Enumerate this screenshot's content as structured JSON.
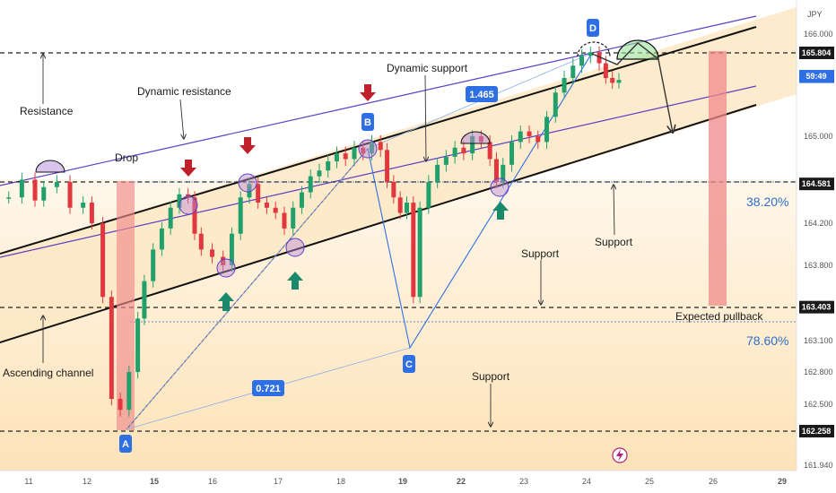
{
  "currency": "JPY",
  "countdown": "59:49",
  "colors": {
    "bg": "#ffffff",
    "channel_fill": "#fde8c4",
    "channel_black": "#111111",
    "channel_purple": "#5b3fc4",
    "bull": "#22a06b",
    "bear": "#e0383e",
    "point_tag": "#2f6fe4",
    "down_arrow": "#c0202c",
    "up_arrow": "#1b8a6b",
    "pullback_zone": "#f08a8a",
    "fib_text": "#2d6ecb"
  },
  "annotations": {
    "resistance": "Resistance",
    "dynamic_resistance": "Dynamic resistance",
    "dynamic_support": "Dynamic support",
    "drop": "Drop",
    "support_1": "Support",
    "support_2": "Support",
    "support_3": "Support",
    "ascending_channel": "Ascending channel",
    "expected_pullback": "Expected pullback",
    "fib_382": "38.20%",
    "fib_786": "78.60%",
    "ratio_ab": "0.721",
    "ratio_cd": "1.465"
  },
  "points": {
    "A": "A",
    "B": "B",
    "C": "C",
    "D": "D"
  },
  "chart_data": {
    "type": "candlestick",
    "instrument_currency": "JPY",
    "x_ticks": [
      "11",
      "12",
      "15",
      "16",
      "17",
      "18",
      "19",
      "22",
      "23",
      "24",
      "25",
      "26",
      "29"
    ],
    "y_ticks": [
      166.0,
      165.6,
      165.0,
      164.6,
      164.2,
      163.8,
      163.4,
      163.1,
      162.8,
      162.5,
      161.94
    ],
    "y_tick_labels": [
      "166.000",
      "165.600",
      "165.000",
      "164.600",
      "164.200",
      "163.800",
      "163.400",
      "163.100",
      "162.800",
      "162.500",
      "161.940"
    ],
    "ylim": [
      161.85,
      166.35
    ],
    "price_levels": [
      {
        "label": "165.804",
        "value": 165.804
      },
      {
        "label": "164.581",
        "value": 164.581
      },
      {
        "label": "163.403",
        "value": 163.403
      },
      {
        "label": "162.258",
        "value": 162.258
      }
    ],
    "current_price": {
      "label": "165.576",
      "value": 165.576
    },
    "harmonic_points": [
      {
        "name": "A",
        "x": 12.8,
        "y": 162.26
      },
      {
        "name": "B",
        "x": 18.7,
        "y": 164.95
      },
      {
        "name": "C",
        "x": 19.2,
        "y": 163.1
      },
      {
        "name": "D",
        "x": 24.0,
        "y": 165.81
      }
    ],
    "fib_ratios": [
      0.721,
      1.465
    ],
    "fib_levels": [
      "38.20%",
      "78.60%"
    ],
    "close_series": [
      {
        "x": 10.2,
        "y": 164.45
      },
      {
        "x": 10.5,
        "y": 164.62
      },
      {
        "x": 10.8,
        "y": 164.42
      },
      {
        "x": 11.0,
        "y": 164.55
      },
      {
        "x": 11.3,
        "y": 164.6
      },
      {
        "x": 11.6,
        "y": 164.35
      },
      {
        "x": 11.9,
        "y": 164.4
      },
      {
        "x": 12.1,
        "y": 164.2
      },
      {
        "x": 12.35,
        "y": 163.5
      },
      {
        "x": 12.55,
        "y": 162.55
      },
      {
        "x": 12.75,
        "y": 162.45
      },
      {
        "x": 12.95,
        "y": 162.8
      },
      {
        "x": 13.15,
        "y": 163.3
      },
      {
        "x": 13.3,
        "y": 163.65
      },
      {
        "x": 13.5,
        "y": 163.95
      },
      {
        "x": 13.7,
        "y": 164.15
      },
      {
        "x": 13.9,
        "y": 164.35
      },
      {
        "x": 14.1,
        "y": 164.48
      },
      {
        "x": 14.3,
        "y": 164.45
      },
      {
        "x": 14.45,
        "y": 164.1
      },
      {
        "x": 14.6,
        "y": 163.95
      },
      {
        "x": 14.85,
        "y": 163.88
      },
      {
        "x": 15.1,
        "y": 163.8
      },
      {
        "x": 15.3,
        "y": 164.1
      },
      {
        "x": 15.5,
        "y": 164.45
      },
      {
        "x": 15.7,
        "y": 164.58
      },
      {
        "x": 15.9,
        "y": 164.4
      },
      {
        "x": 16.1,
        "y": 164.35
      },
      {
        "x": 16.3,
        "y": 164.3
      },
      {
        "x": 16.5,
        "y": 164.15
      },
      {
        "x": 16.7,
        "y": 164.35
      },
      {
        "x": 16.9,
        "y": 164.5
      },
      {
        "x": 17.1,
        "y": 164.65
      },
      {
        "x": 17.3,
        "y": 164.7
      },
      {
        "x": 17.5,
        "y": 164.78
      },
      {
        "x": 17.7,
        "y": 164.85
      },
      {
        "x": 17.9,
        "y": 164.8
      },
      {
        "x": 18.1,
        "y": 164.9
      },
      {
        "x": 18.3,
        "y": 164.85
      },
      {
        "x": 18.5,
        "y": 164.95
      },
      {
        "x": 18.7,
        "y": 164.88
      },
      {
        "x": 18.85,
        "y": 164.6
      },
      {
        "x": 19.0,
        "y": 164.45
      },
      {
        "x": 19.15,
        "y": 164.3
      },
      {
        "x": 19.3,
        "y": 164.4
      },
      {
        "x": 19.45,
        "y": 163.5
      },
      {
        "x": 19.6,
        "y": 164.35
      },
      {
        "x": 19.8,
        "y": 164.6
      },
      {
        "x": 20.0,
        "y": 164.75
      },
      {
        "x": 20.2,
        "y": 164.82
      },
      {
        "x": 20.4,
        "y": 164.9
      },
      {
        "x": 20.6,
        "y": 164.85
      },
      {
        "x": 20.8,
        "y": 165.0
      },
      {
        "x": 21.0,
        "y": 164.95
      },
      {
        "x": 21.2,
        "y": 164.8
      },
      {
        "x": 21.35,
        "y": 164.6
      },
      {
        "x": 21.5,
        "y": 164.75
      },
      {
        "x": 21.7,
        "y": 164.95
      },
      {
        "x": 21.9,
        "y": 165.05
      },
      {
        "x": 22.1,
        "y": 165.0
      },
      {
        "x": 22.3,
        "y": 164.95
      },
      {
        "x": 22.5,
        "y": 165.2
      },
      {
        "x": 22.7,
        "y": 165.45
      },
      {
        "x": 22.9,
        "y": 165.6
      },
      {
        "x": 23.1,
        "y": 165.7
      },
      {
        "x": 23.3,
        "y": 165.78
      },
      {
        "x": 23.5,
        "y": 165.81
      },
      {
        "x": 23.7,
        "y": 165.72
      },
      {
        "x": 23.85,
        "y": 165.6
      },
      {
        "x": 24.0,
        "y": 165.55
      },
      {
        "x": 24.15,
        "y": 165.58
      }
    ]
  }
}
